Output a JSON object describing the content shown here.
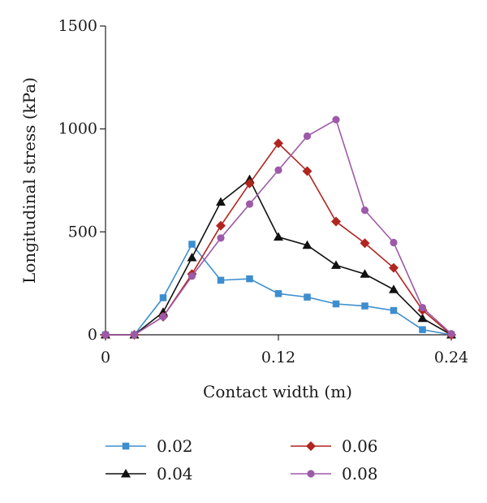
{
  "chart_data": {
    "type": "line",
    "title": "",
    "xlabel": "Contact width (m)",
    "ylabel": "Longitudinal stress (kPa)",
    "xlim": [
      0,
      0.24
    ],
    "ylim": [
      0,
      1500
    ],
    "x_ticks": [
      0,
      0.12,
      0.24
    ],
    "x_tick_labels": [
      "0",
      "0.12",
      "0.24"
    ],
    "y_ticks": [
      0,
      500,
      1000,
      1500
    ],
    "y_tick_labels": [
      "0",
      "500",
      "1000",
      "1500"
    ],
    "grid": false,
    "legend_position": "bottom",
    "x": [
      0,
      0.02,
      0.04,
      0.06,
      0.08,
      0.1,
      0.12,
      0.14,
      0.16,
      0.18,
      0.2,
      0.22,
      0.24
    ],
    "series": [
      {
        "name": "0.02",
        "color": "#3d8ecf",
        "marker": "square",
        "values": [
          0,
          0,
          180,
          440,
          265,
          272,
          200,
          183,
          150,
          140,
          118,
          25,
          0
        ]
      },
      {
        "name": "0.04",
        "color": "#111111",
        "marker": "triangle",
        "values": [
          0,
          0,
          110,
          375,
          645,
          755,
          475,
          435,
          338,
          295,
          220,
          80,
          0
        ]
      },
      {
        "name": "0.06",
        "color": "#b0251e",
        "marker": "diamond",
        "values": [
          0,
          0,
          88,
          295,
          530,
          735,
          930,
          795,
          550,
          445,
          325,
          120,
          0
        ]
      },
      {
        "name": "0.08",
        "color": "#9d5aa8",
        "marker": "circle",
        "values": [
          0,
          0,
          88,
          285,
          470,
          635,
          800,
          965,
          1045,
          605,
          448,
          132,
          5
        ]
      }
    ]
  }
}
